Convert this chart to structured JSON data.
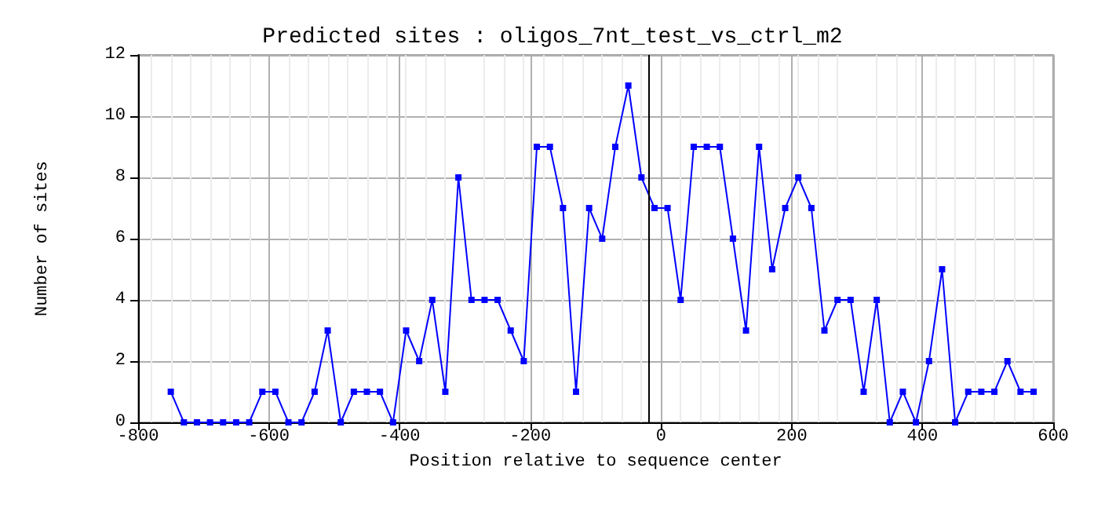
{
  "chart_data": {
    "type": "line",
    "title": "Predicted sites : oligos_7nt_test_vs_ctrl_m2",
    "xlabel": "Position relative to sequence center",
    "ylabel": "Number of sites",
    "x": [
      -750,
      -730,
      -710,
      -690,
      -670,
      -650,
      -630,
      -610,
      -590,
      -570,
      -550,
      -530,
      -510,
      -490,
      -470,
      -450,
      -430,
      -410,
      -390,
      -370,
      -350,
      -330,
      -310,
      -290,
      -270,
      -250,
      -230,
      -210,
      -190,
      -170,
      -150,
      -130,
      -110,
      -90,
      -70,
      -50,
      -30,
      -10,
      10,
      30,
      50,
      70,
      90,
      110,
      130,
      150,
      170,
      190,
      210,
      230,
      250,
      270,
      290,
      310,
      330,
      350,
      370,
      390,
      410,
      430,
      450,
      470,
      490,
      510,
      530,
      550,
      570
    ],
    "series": [
      {
        "color": "#0000ff",
        "values": [
          1,
          0,
          0,
          0,
          0,
          0,
          0,
          1,
          1,
          0,
          0,
          1,
          3,
          0,
          1,
          1,
          1,
          0,
          3,
          2,
          4,
          1,
          8,
          4,
          4,
          4,
          3,
          2,
          9,
          9,
          7,
          1,
          7,
          6,
          9,
          11,
          8,
          7,
          7,
          4,
          9,
          9,
          9,
          6,
          3,
          9,
          5,
          7,
          8,
          7,
          3,
          4,
          4,
          1,
          4,
          0,
          1,
          0,
          2,
          5,
          0,
          1,
          1,
          1,
          2,
          1,
          1
        ]
      }
    ],
    "xlim": [
      -800,
      600
    ],
    "xticks": [
      -800,
      -600,
      -400,
      -200,
      0,
      200,
      400,
      600
    ],
    "ylim": [
      0,
      12
    ],
    "yticks": [
      0,
      2,
      4,
      6,
      8,
      10,
      12
    ],
    "ref_lines": [
      {
        "axis": "x",
        "value": -20,
        "color": "#000000"
      }
    ],
    "grid": true,
    "marker": "square",
    "line_style": "solid"
  }
}
